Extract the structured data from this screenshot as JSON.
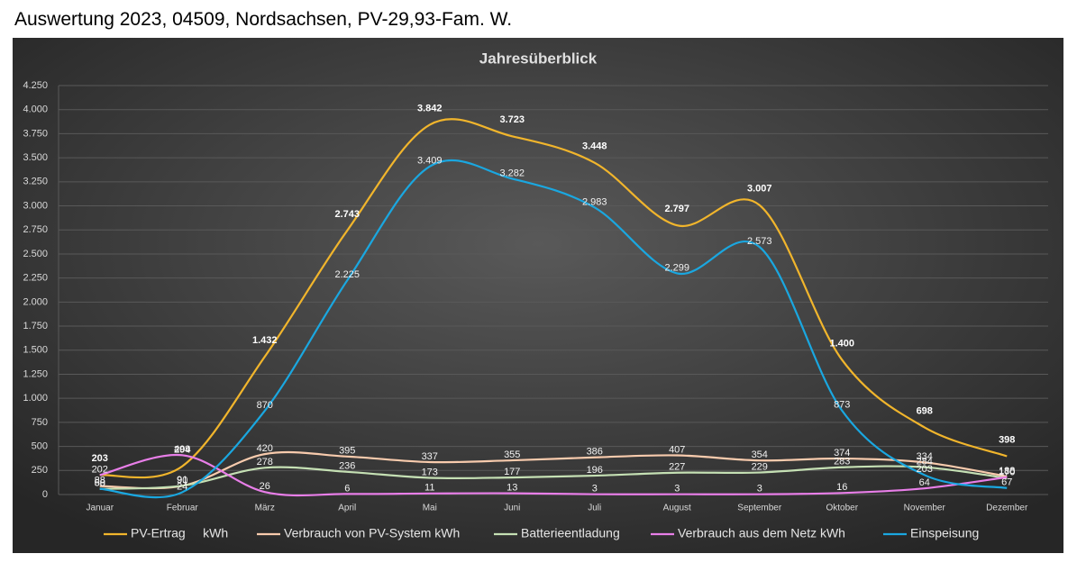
{
  "page_title": "Auswertung 2023, 04509, Nordsachsen, PV-29,93-Fam. W.",
  "chart_data": {
    "type": "line",
    "title": "Jahresüberblick",
    "categories": [
      "Januar",
      "Februar",
      "März",
      "April",
      "Mai",
      "Juni",
      "Juli",
      "August",
      "September",
      "Oktober",
      "November",
      "Dezember"
    ],
    "ylim": [
      0,
      4250
    ],
    "yticks": [
      0,
      250,
      {
        "value": 500,
        "label": "500"
      },
      750,
      {
        "value": 1000,
        "label": "1.000"
      },
      {
        "value": 1250,
        "label": "1.250"
      },
      {
        "value": 1500,
        "label": "1.500"
      },
      {
        "value": 1750,
        "label": "1.750"
      },
      {
        "value": 2000,
        "label": "2.000"
      },
      {
        "value": 2250,
        "label": "2.250"
      },
      {
        "value": 2500,
        "label": "2.500"
      },
      {
        "value": 2750,
        "label": "2.750"
      },
      {
        "value": 3000,
        "label": "3.000"
      },
      {
        "value": 3250,
        "label": "3.250"
      },
      {
        "value": 3500,
        "label": "3.500"
      },
      {
        "value": 3750,
        "label": "3.750"
      },
      {
        "value": 4000,
        "label": "4.000"
      },
      {
        "value": 4250,
        "label": "4.250"
      }
    ],
    "grid": true,
    "legend": "bottom",
    "smooth": true,
    "series": [
      {
        "name": "PV-Ertrag     kWh",
        "color": "#f1b52c",
        "values": [
          203,
          294,
          1432,
          2743,
          3842,
          3723,
          3448,
          2797,
          3007,
          1400,
          698,
          398
        ],
        "value_labels": [
          "203",
          "294",
          "1.432",
          "2.743",
          "3.842",
          "3.723",
          "3.448",
          "2.797",
          "3.007",
          "1.400",
          "698",
          "398"
        ]
      },
      {
        "name": "Verbrauch von PV-System kWh",
        "color": "#f8cbad",
        "values": [
          88,
          90,
          420,
          395,
          337,
          355,
          386,
          407,
          354,
          374,
          334,
          188
        ]
      },
      {
        "name": "Batterieentladung",
        "color": "#c5e0b4",
        "values": [
          58,
          91,
          278,
          236,
          173,
          177,
          196,
          227,
          229,
          283,
          284,
          170
        ]
      },
      {
        "name": "Verbrauch aus dem Netz kWh",
        "color": "#e87ee8",
        "values": [
          202,
          409,
          26,
          6,
          11,
          13,
          3,
          3,
          3,
          16,
          64,
          180
        ]
      },
      {
        "name": "Einspeisung",
        "color": "#1aa7e0",
        "values": [
          60,
          24,
          870,
          2225,
          3409,
          3282,
          2983,
          2299,
          2573,
          873,
          203,
          67
        ],
        "value_labels": [
          "60",
          "24",
          "870",
          "2.225",
          "3.409",
          "3.282",
          "2.983",
          "2.299",
          "2.573",
          "873",
          "203",
          "67"
        ]
      }
    ]
  }
}
